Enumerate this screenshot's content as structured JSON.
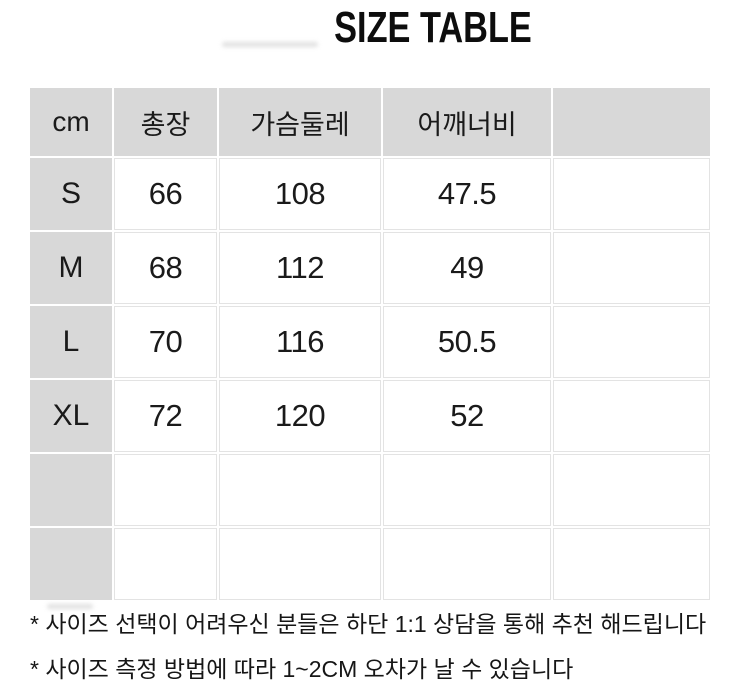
{
  "title": "SIZE TABLE",
  "table": {
    "columns": [
      "cm",
      "총장",
      "가슴둘레",
      "어깨너비",
      ""
    ],
    "rows": [
      {
        "size": "S",
        "values": [
          "66",
          "108",
          "47.5",
          ""
        ]
      },
      {
        "size": "M",
        "values": [
          "68",
          "112",
          "49",
          ""
        ]
      },
      {
        "size": "L",
        "values": [
          "70",
          "116",
          "50.5",
          ""
        ]
      },
      {
        "size": "XL",
        "values": [
          "72",
          "120",
          "52",
          ""
        ]
      },
      {
        "size": "",
        "values": [
          "",
          "",
          "",
          ""
        ]
      },
      {
        "size": "",
        "values": [
          "",
          "",
          "",
          ""
        ]
      }
    ]
  },
  "notes": [
    "* 사이즈 선택이 어려우신 분들은 하단 1:1 상담을 통해 추천 해드립니다",
    "* 사이즈 측정 방법에 따라 1~2CM 오차가 날 수 있습니다"
  ],
  "colors": {
    "cell_gray": "#d8d8d8",
    "grid_line": "#e3e3e3",
    "text": "#1a1a1a"
  }
}
